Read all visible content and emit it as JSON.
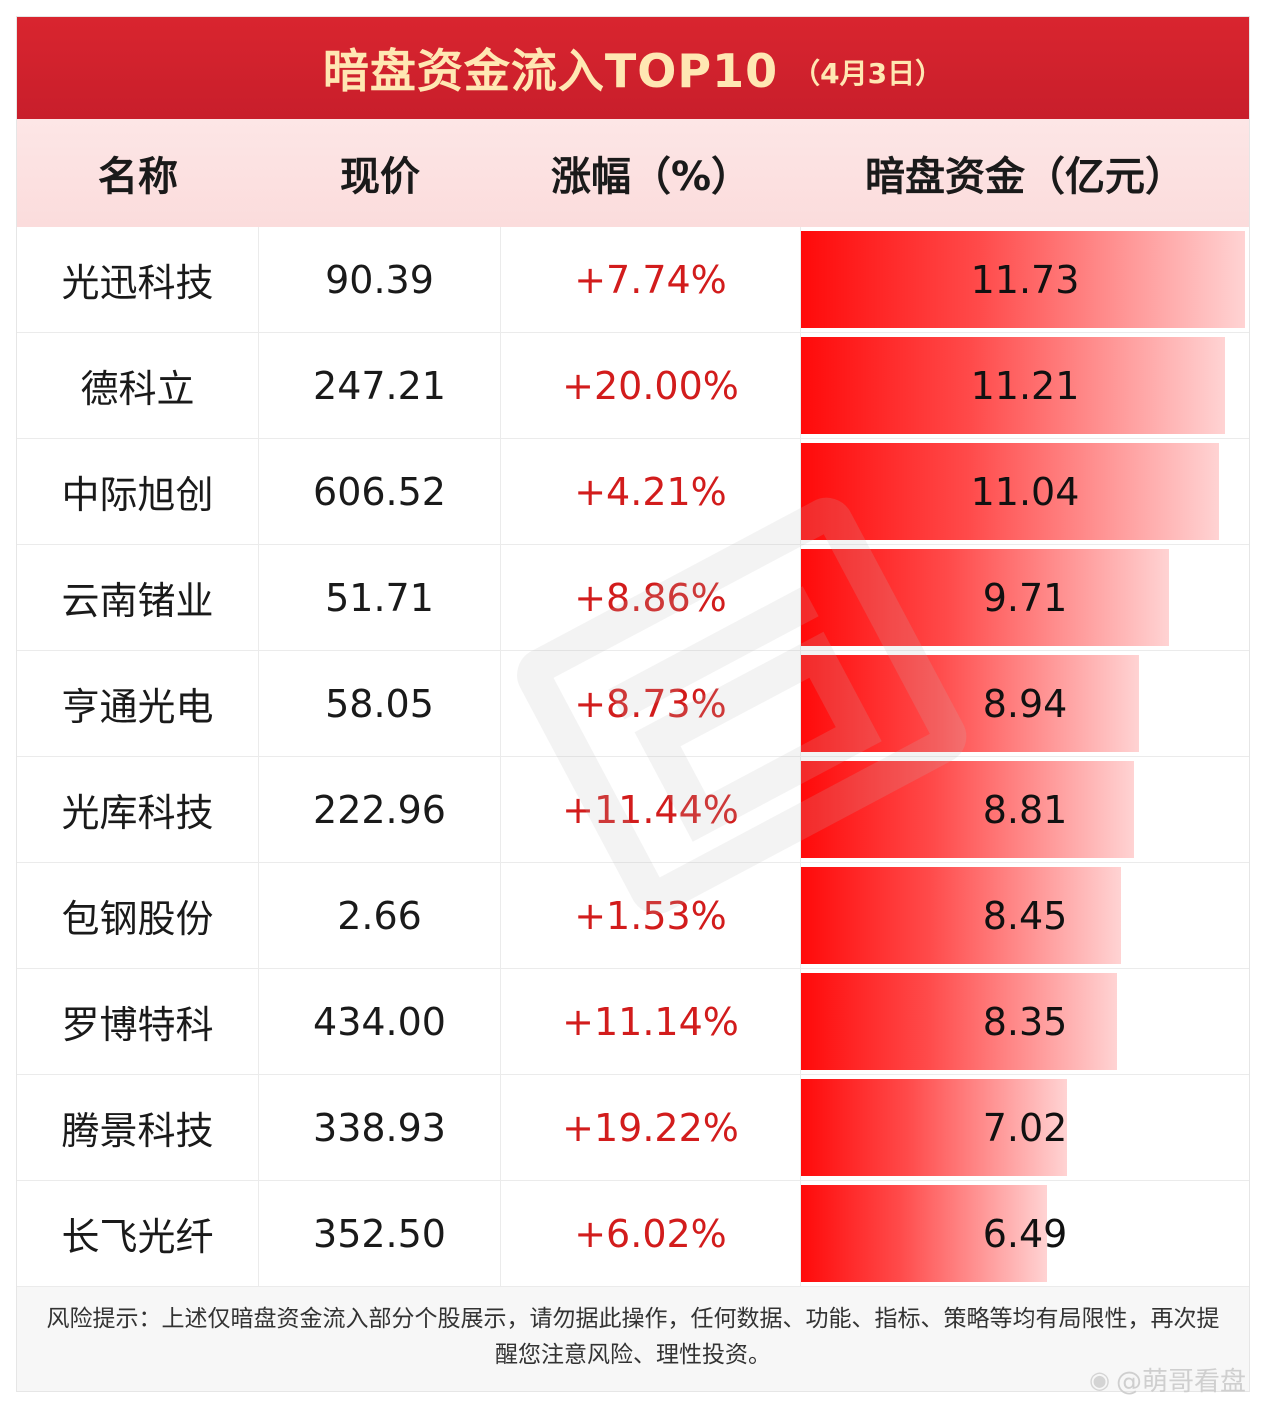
{
  "title": {
    "main": "暗盘资金流入TOP10",
    "date": "（4月3日）"
  },
  "headers": {
    "name": "名称",
    "price": "现价",
    "change": "涨幅（%）",
    "fund": "暗盘资金（亿元）"
  },
  "chart_data": {
    "type": "table",
    "title": "暗盘资金流入TOP10",
    "columns": [
      "名称",
      "现价",
      "涨幅（%）",
      "暗盘资金（亿元）"
    ],
    "rows": [
      {
        "name": "光迅科技",
        "price": "90.39",
        "change": "+7.74%",
        "fund": "11.73",
        "fund_value": 11.73
      },
      {
        "name": "德科立",
        "price": "247.21",
        "change": "+20.00%",
        "fund": "11.21",
        "fund_value": 11.21
      },
      {
        "name": "中际旭创",
        "price": "606.52",
        "change": "+4.21%",
        "fund": "11.04",
        "fund_value": 11.04
      },
      {
        "name": "云南锗业",
        "price": "51.71",
        "change": "+8.86%",
        "fund": "9.71",
        "fund_value": 9.71
      },
      {
        "name": "亨通光电",
        "price": "58.05",
        "change": "+8.73%",
        "fund": "8.94",
        "fund_value": 8.94
      },
      {
        "name": "光库科技",
        "price": "222.96",
        "change": "+11.44%",
        "fund": "8.81",
        "fund_value": 8.81
      },
      {
        "name": "包钢股份",
        "price": "2.66",
        "change": "+1.53%",
        "fund": "8.45",
        "fund_value": 8.45
      },
      {
        "name": "罗博特科",
        "price": "434.00",
        "change": "+11.14%",
        "fund": "8.35",
        "fund_value": 8.35
      },
      {
        "name": "腾景科技",
        "price": "338.93",
        "change": "+19.22%",
        "fund": "7.02",
        "fund_value": 7.02
      },
      {
        "name": "长飞光纤",
        "price": "352.50",
        "change": "+6.02%",
        "fund": "6.49",
        "fund_value": 6.49
      }
    ],
    "bar_max": 11.73,
    "colors": {
      "bar_start": "#ff0a0a",
      "bar_end": "#ffd3d3",
      "change_text": "#d21c1c",
      "title_bg": "#d9252f",
      "title_text": "#ffe7b3"
    }
  },
  "footer": {
    "disclaimer": "风险提示：上述仅暗盘资金流入部分个股展示，请勿据此操作，任何数据、功能、指标、策略等均有局限性，再次提醒您注意风险、理性投资。",
    "weibo": "@萌哥看盘"
  }
}
